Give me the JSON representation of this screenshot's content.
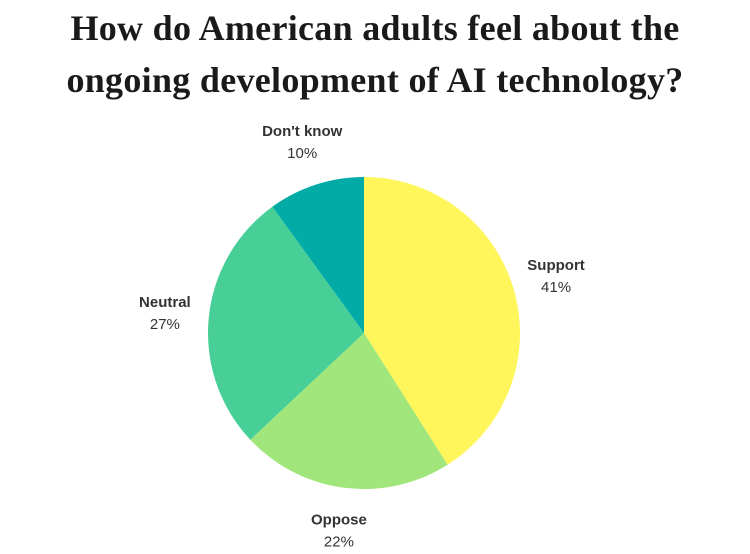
{
  "chart_data": {
    "type": "pie",
    "title": "How do American adults feel about the ongoing development of AI technology?",
    "categories": [
      "Support",
      "Oppose",
      "Neutral",
      "Don't know"
    ],
    "values": [
      41,
      22,
      27,
      10
    ],
    "value_labels": [
      "41%",
      "22%",
      "27%",
      "10%"
    ],
    "colors": [
      "#fef65b",
      "#a0e67a",
      "#47cf97",
      "#03aba6"
    ]
  }
}
